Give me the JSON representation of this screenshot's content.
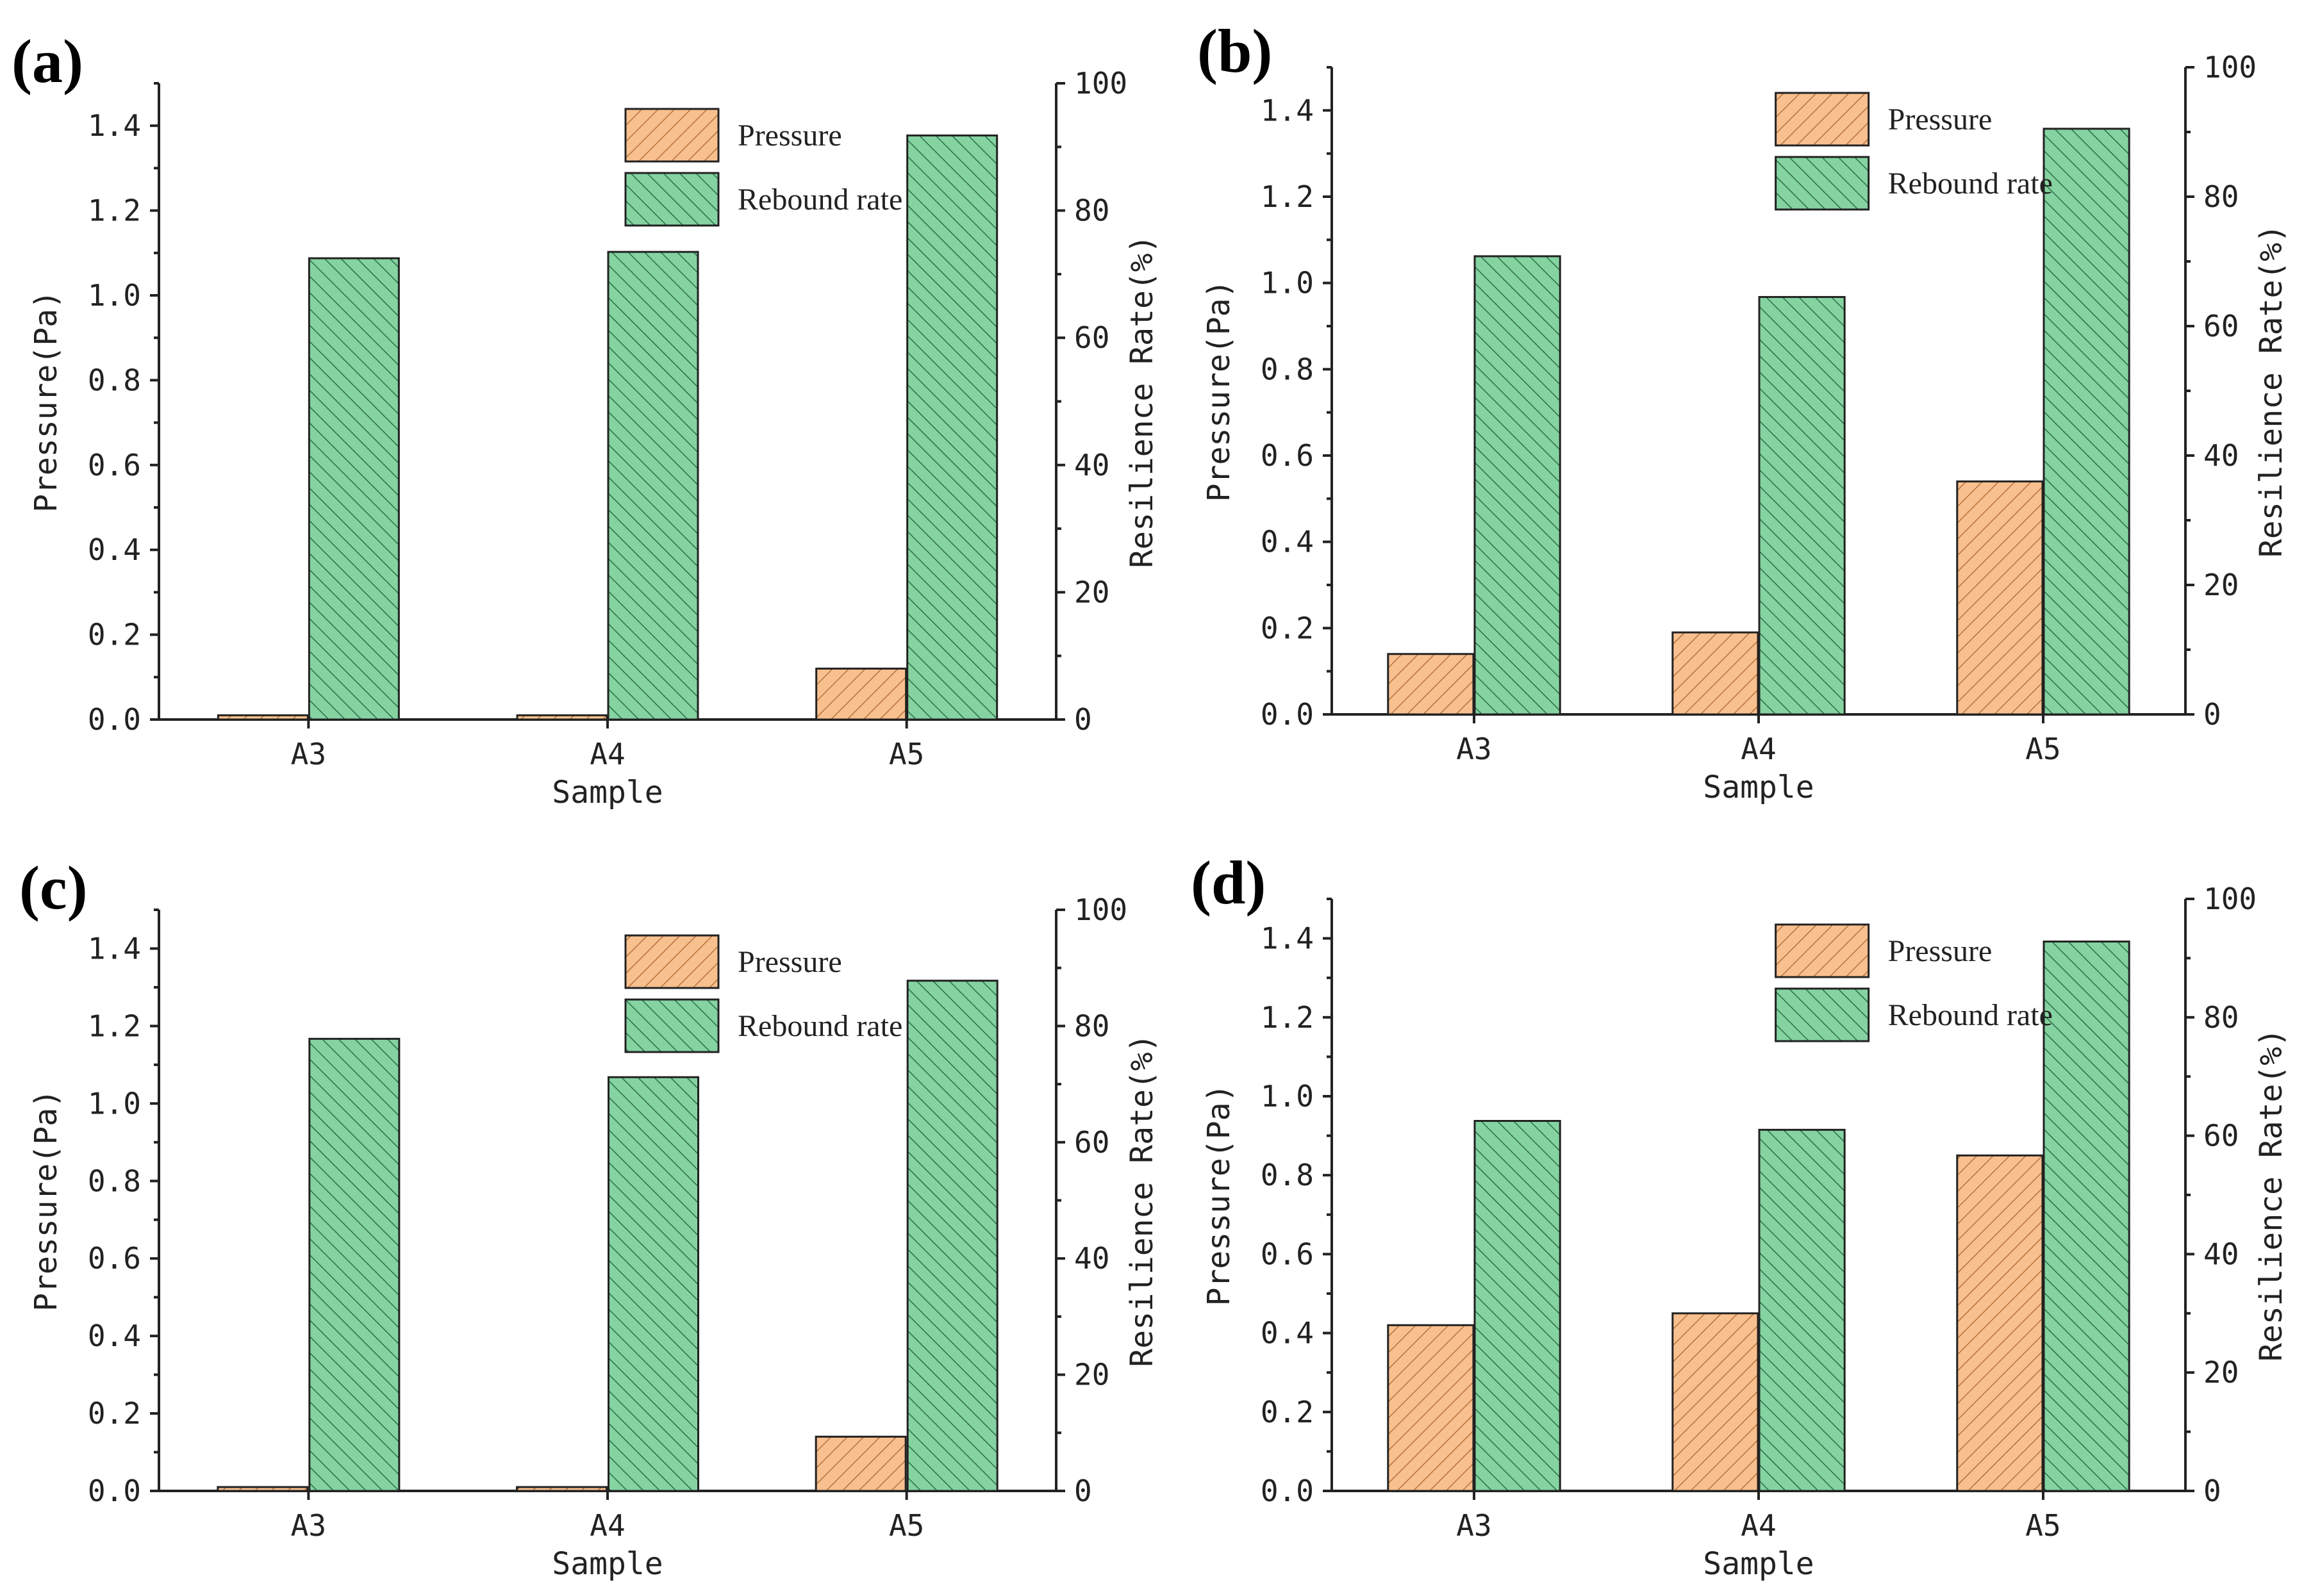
{
  "figure": {
    "colors": {
      "pressure": "#f9c08f",
      "rebound": "#84d3a1",
      "pressure_hatch": "#b8723a",
      "rebound_hatch": "#2e6e46",
      "axis": "#222222"
    }
  },
  "chart_data": [
    {
      "type": "bar",
      "panel": "(a)",
      "categories": [
        "A3",
        "A4",
        "A5"
      ],
      "xlabel": "Sample",
      "ylabel": "Pressure(Pa)",
      "y2label": "Resilience Rate(%)",
      "ylim": [
        0,
        1.5
      ],
      "y2lim": [
        0,
        100
      ],
      "yticks": [
        "0.0",
        "0.2",
        "0.4",
        "0.6",
        "0.8",
        "1.0",
        "1.2",
        "1.4"
      ],
      "y2ticks": [
        "0",
        "20",
        "40",
        "60",
        "80",
        "100"
      ],
      "legend": [
        "Pressure",
        "Rebound rate"
      ],
      "series": [
        {
          "name": "Pressure",
          "axis": "left",
          "values": [
            0.01,
            0.01,
            0.12
          ]
        },
        {
          "name": "Rebound rate",
          "axis": "right",
          "values": [
            72.5,
            73.5,
            91.8
          ]
        }
      ]
    },
    {
      "type": "bar",
      "panel": "(b)",
      "categories": [
        "A3",
        "A4",
        "A5"
      ],
      "xlabel": "Sample",
      "ylabel": "Pressure(Pa)",
      "y2label": "Resilience Rate(%)",
      "ylim": [
        0,
        1.5
      ],
      "y2lim": [
        0,
        100
      ],
      "yticks": [
        "0.0",
        "0.2",
        "0.4",
        "0.6",
        "0.8",
        "1.0",
        "1.2",
        "1.4"
      ],
      "y2ticks": [
        "0",
        "20",
        "40",
        "60",
        "80",
        "100"
      ],
      "legend": [
        "Pressure",
        "Rebound rate"
      ],
      "series": [
        {
          "name": "Pressure",
          "axis": "left",
          "values": [
            0.14,
            0.19,
            0.54
          ]
        },
        {
          "name": "Rebound rate",
          "axis": "right",
          "values": [
            70.8,
            64.5,
            90.5
          ]
        }
      ]
    },
    {
      "type": "bar",
      "panel": "(c)",
      "categories": [
        "A3",
        "A4",
        "A5"
      ],
      "xlabel": "Sample",
      "ylabel": "Pressure(Pa)",
      "y2label": "Resilience Rate(%)",
      "ylim": [
        0,
        1.5
      ],
      "y2lim": [
        0,
        100
      ],
      "yticks": [
        "0.0",
        "0.2",
        "0.4",
        "0.6",
        "0.8",
        "1.0",
        "1.2",
        "1.4"
      ],
      "y2ticks": [
        "0",
        "20",
        "40",
        "60",
        "80",
        "100"
      ],
      "legend": [
        "Pressure",
        "Rebound rate"
      ],
      "series": [
        {
          "name": "Pressure",
          "axis": "left",
          "values": [
            0.01,
            0.01,
            0.14
          ]
        },
        {
          "name": "Rebound rate",
          "axis": "right",
          "values": [
            77.8,
            71.2,
            87.8
          ]
        }
      ]
    },
    {
      "type": "bar",
      "panel": "(d)",
      "categories": [
        "A3",
        "A4",
        "A5"
      ],
      "xlabel": "Sample",
      "ylabel": "Pressure(Pa)",
      "y2label": "Resilience Rate(%)",
      "ylim": [
        0,
        1.5
      ],
      "y2lim": [
        0,
        100
      ],
      "yticks": [
        "0.0",
        "0.2",
        "0.4",
        "0.6",
        "0.8",
        "1.0",
        "1.2",
        "1.4"
      ],
      "y2ticks": [
        "0",
        "20",
        "40",
        "60",
        "80",
        "100"
      ],
      "legend": [
        "Pressure",
        "Rebound rate"
      ],
      "series": [
        {
          "name": "Pressure",
          "axis": "left",
          "values": [
            0.42,
            0.45,
            0.85
          ]
        },
        {
          "name": "Rebound rate",
          "axis": "right",
          "values": [
            62.5,
            61.0,
            92.8
          ]
        }
      ]
    }
  ]
}
